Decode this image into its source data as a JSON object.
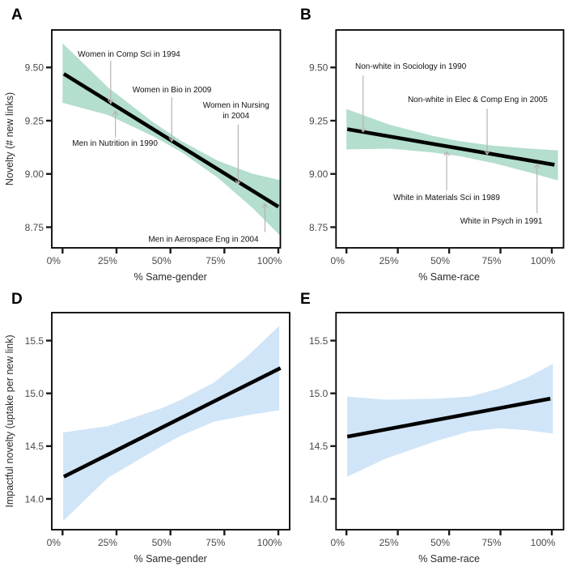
{
  "figure": {
    "background": "#ffffff",
    "style": {
      "band_green": "#b4decd",
      "band_blue": "#d0e5f7",
      "trend_line_color": "#000000",
      "arrow_color": "#bab3b3",
      "tick_label_color": "#4a4a4a",
      "axis_title_color": "#2b2b2b",
      "annotation_color": "#111111",
      "panel_border_color": "#000000",
      "panel_letter_color": "#000000"
    }
  },
  "chart_data": {
    "type": "line",
    "description": "Four-panel figure: fitted regression lines with shaded confidence bands",
    "panels": [
      {
        "letter": "A",
        "ylabel": "Novelty (# new links)",
        "xlabel": "% Same-gender",
        "x_ticks": [
          {
            "v": 0.0,
            "label": "0%"
          },
          {
            "v": 0.25,
            "label": "25%"
          },
          {
            "v": 0.5,
            "label": "50%"
          },
          {
            "v": 0.75,
            "label": "75%"
          },
          {
            "v": 1.0,
            "label": "100%"
          }
        ],
        "y_ticks": [
          {
            "v": 9.5,
            "label": "9.50"
          },
          {
            "v": 9.25,
            "label": "9.25"
          },
          {
            "v": 9.0,
            "label": "9.00"
          },
          {
            "v": 8.75,
            "label": "8.75"
          }
        ],
        "ylim": [
          8.653,
          9.676
        ],
        "band_color": "#b4decd",
        "line": {
          "x": [
            0.006,
            1.0
          ],
          "y": [
            9.47,
            8.846
          ]
        },
        "band": {
          "x": [
            0.0,
            0.21,
            0.42,
            0.55,
            0.72,
            0.88,
            1.008
          ],
          "hi": [
            9.614,
            9.407,
            9.243,
            9.155,
            9.062,
            9.001,
            8.971
          ],
          "lo": [
            9.334,
            9.277,
            9.177,
            9.103,
            8.982,
            8.841,
            8.711
          ]
        },
        "annotations": [
          {
            "lines": [
              "Women in Comp Sci in 1994"
            ],
            "x": 0.308,
            "y": 9.551,
            "arrow": {
              "x": 0.223,
              "from": 9.532,
              "to": 9.331
            }
          },
          {
            "lines": [
              "Men in Nutrition in 1990"
            ],
            "x": 0.243,
            "y": 9.132,
            "arrow": {
              "x": 0.245,
              "from": 9.172,
              "to": 9.295
            }
          },
          {
            "lines": [
              "Women in Bio in 2009"
            ],
            "x": 0.507,
            "y": 9.383,
            "arrow": {
              "x": 0.506,
              "from": 9.36,
              "to": 9.153
            }
          },
          {
            "lines": [
              "Women in Nursing",
              "in 2004"
            ],
            "x": 0.804,
            "y": 9.31,
            "arrow": {
              "x": 0.814,
              "from": 9.232,
              "to": 8.952
            }
          },
          {
            "lines": [
              "Men in Aerospace Eng in 2004"
            ],
            "x": 0.653,
            "y": 8.682,
            "arrow": {
              "x": 0.938,
              "from": 8.727,
              "to": 8.86
            }
          }
        ]
      },
      {
        "letter": "B",
        "ylabel": null,
        "xlabel": "% Same-race",
        "x_ticks": [
          {
            "v": 0.0,
            "label": "0%"
          },
          {
            "v": 0.25,
            "label": "25%"
          },
          {
            "v": 0.5,
            "label": "50%"
          },
          {
            "v": 0.75,
            "label": "75%"
          },
          {
            "v": 1.0,
            "label": "100%"
          }
        ],
        "y_ticks": [
          {
            "v": 9.5,
            "label": "9.50"
          },
          {
            "v": 9.25,
            "label": "9.25"
          },
          {
            "v": 9.0,
            "label": "9.00"
          },
          {
            "v": 8.75,
            "label": "8.75"
          }
        ],
        "ylim": [
          8.653,
          9.676
        ],
        "band_color": "#b4decd",
        "line": {
          "x": [
            0.004,
            1.013
          ],
          "y": [
            9.21,
            9.043
          ]
        },
        "band": {
          "x": [
            0.0,
            0.21,
            0.42,
            0.55,
            0.72,
            0.88,
            1.03
          ],
          "hi": [
            9.305,
            9.231,
            9.179,
            9.154,
            9.132,
            9.12,
            9.111
          ],
          "lo": [
            9.115,
            9.119,
            9.101,
            9.084,
            9.05,
            9.01,
            8.969
          ]
        },
        "annotations": [
          {
            "lines": [
              "Non-white in Sociology in 1990"
            ],
            "x": 0.313,
            "y": 9.494,
            "arrow": {
              "x": 0.081,
              "from": 9.462,
              "to": 9.198
            }
          },
          {
            "lines": [
              "Non-white in Elec & Comp Eng in 2005"
            ],
            "x": 0.639,
            "y": 9.338,
            "arrow": {
              "x": 0.685,
              "from": 9.306,
              "to": 9.092
            }
          },
          {
            "lines": [
              "White in Materials Sci in 1989"
            ],
            "x": 0.488,
            "y": 8.877,
            "arrow": {
              "x": 0.488,
              "from": 8.922,
              "to": 9.104
            }
          },
          {
            "lines": [
              "White in Psych in 1991"
            ],
            "x": 0.754,
            "y": 8.768,
            "arrow": {
              "x": 0.928,
              "from": 8.816,
              "to": 9.046
            }
          }
        ]
      },
      {
        "letter": "D",
        "ylabel": "Impactful novelty (uptake per new link)",
        "xlabel": "% Same-gender",
        "x_ticks": [
          {
            "v": 0.0,
            "label": "0%"
          },
          {
            "v": 0.25,
            "label": "25%"
          },
          {
            "v": 0.5,
            "label": "50%"
          },
          {
            "v": 0.75,
            "label": "75%"
          },
          {
            "v": 1.0,
            "label": "100%"
          }
        ],
        "y_ticks": [
          {
            "v": 15.5,
            "label": "15.5"
          },
          {
            "v": 15.0,
            "label": "15.0"
          },
          {
            "v": 14.5,
            "label": "14.5"
          },
          {
            "v": 14.0,
            "label": "14.0"
          }
        ],
        "ylim": [
          13.708,
          15.765
        ],
        "band_color": "#d0e5f7",
        "line": {
          "x": [
            0.006,
            1.01
          ],
          "y": [
            14.21,
            15.24
          ]
        },
        "band": {
          "x": [
            0.003,
            0.21,
            0.46,
            0.55,
            0.7,
            0.85,
            1.004
          ],
          "hi": [
            14.63,
            14.69,
            14.86,
            14.94,
            15.1,
            15.34,
            15.64
          ],
          "lo": [
            13.79,
            14.2,
            14.5,
            14.6,
            14.73,
            14.79,
            14.84
          ]
        },
        "annotations": []
      },
      {
        "letter": "E",
        "ylabel": null,
        "xlabel": "% Same-race",
        "x_ticks": [
          {
            "v": 0.0,
            "label": "0%"
          },
          {
            "v": 0.25,
            "label": "25%"
          },
          {
            "v": 0.5,
            "label": "50%"
          },
          {
            "v": 0.75,
            "label": "75%"
          },
          {
            "v": 1.0,
            "label": "100%"
          }
        ],
        "y_ticks": [
          {
            "v": 15.5,
            "label": "15.5"
          },
          {
            "v": 15.0,
            "label": "15.0"
          },
          {
            "v": 14.5,
            "label": "14.5"
          },
          {
            "v": 14.0,
            "label": "14.0"
          }
        ],
        "ylim": [
          13.708,
          15.765
        ],
        "band_color": "#d0e5f7",
        "line": {
          "x": [
            0.004,
            0.993
          ],
          "y": [
            14.59,
            14.95
          ]
        },
        "band": {
          "x": [
            0.003,
            0.19,
            0.44,
            0.6,
            0.75,
            0.88,
            1.005
          ],
          "hi": [
            14.97,
            14.94,
            14.95,
            14.97,
            15.05,
            15.15,
            15.28
          ],
          "lo": [
            14.21,
            14.38,
            14.55,
            14.64,
            14.67,
            14.65,
            14.62
          ]
        },
        "annotations": []
      }
    ]
  }
}
